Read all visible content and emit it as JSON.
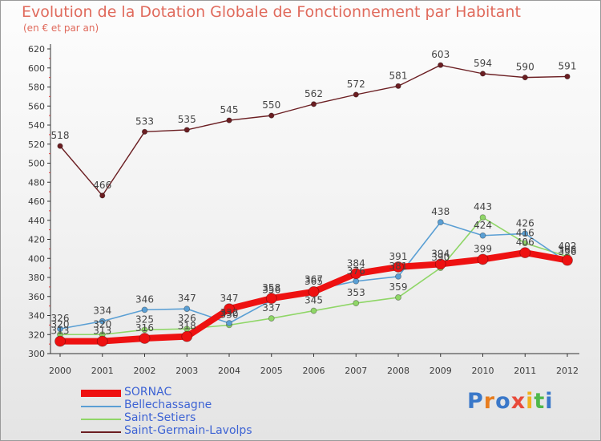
{
  "chart_data": {
    "type": "line",
    "title": "Evolution de la Dotation Globale de Fonctionnement par Habitant",
    "subtitle": "(en € et par an)",
    "xlabel": "",
    "ylabel": "",
    "categories": [
      "2000",
      "2001",
      "2002",
      "2003",
      "2004",
      "2005",
      "2006",
      "2007",
      "2008",
      "2009",
      "2010",
      "2011",
      "2012"
    ],
    "ylim": [
      300,
      620
    ],
    "yticks": [
      300,
      320,
      340,
      360,
      380,
      400,
      420,
      440,
      460,
      480,
      500,
      520,
      540,
      560,
      580,
      600,
      620
    ],
    "grid": false,
    "legend_position": "bottom-left",
    "series": [
      {
        "name": "Saint-Germain-Lavolps",
        "color": "#6b1e22",
        "values": [
          518,
          466,
          533,
          535,
          545,
          550,
          562,
          572,
          581,
          603,
          594,
          590,
          591
        ]
      },
      {
        "name": "Saint-Setiers",
        "color": "#8fd667",
        "values": [
          320,
          320,
          325,
          326,
          330,
          337,
          345,
          353,
          359,
          390,
          443,
          416,
          402
        ]
      },
      {
        "name": "Bellechassagne",
        "color": "#5a9fd4",
        "values": [
          326,
          334,
          346,
          347,
          332,
          356,
          367,
          376,
          381,
          438,
          424,
          426,
          396
        ]
      },
      {
        "name": "SORNAC",
        "color": "#ee1111",
        "values": [
          313,
          313,
          316,
          318,
          347,
          358,
          365,
          384,
          391,
          394,
          399,
          406,
          398
        ]
      }
    ]
  },
  "legend": [
    {
      "label": "SORNAC",
      "color": "#ee1111"
    },
    {
      "label": "Bellechassagne",
      "color": "#5a9fd4"
    },
    {
      "label": "Saint-Setiers",
      "color": "#8fd667"
    },
    {
      "label": "Saint-Germain-Lavolps",
      "color": "#6b1e22"
    }
  ],
  "logo": {
    "text": "Proxiti"
  }
}
